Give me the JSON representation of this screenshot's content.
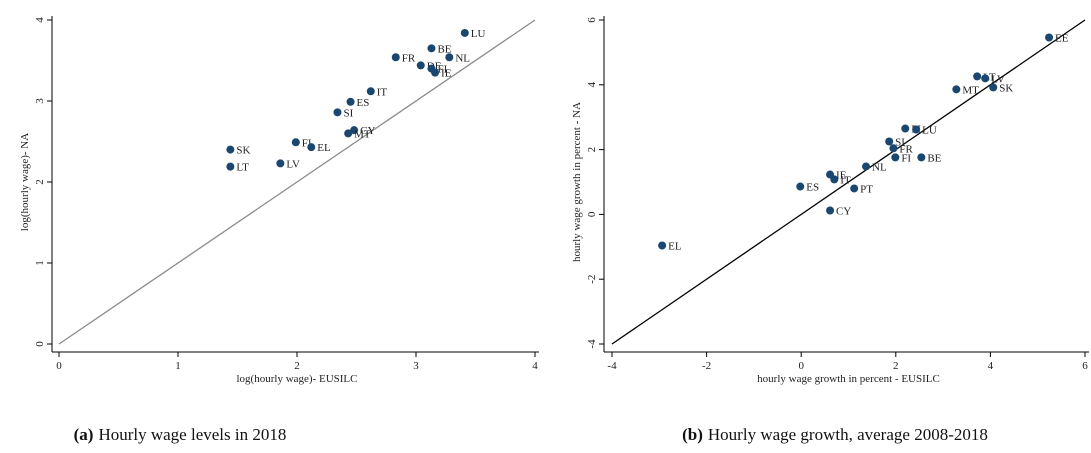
{
  "chart_data": [
    {
      "type": "scatter",
      "caption_label": "(a)",
      "caption": "Hourly wage levels in 2018",
      "xlabel": "log(hourly wage)- EUSILC",
      "ylabel": "log(hourly wage)- NA",
      "xlim": [
        0,
        4
      ],
      "ylim": [
        0,
        4
      ],
      "xticks": [
        0,
        1,
        2,
        3,
        4
      ],
      "yticks": [
        0,
        1,
        2,
        3,
        4
      ],
      "color": "#1a476f",
      "diagonal": {
        "from": [
          0,
          0
        ],
        "to": [
          4,
          4
        ],
        "color": "#8c8c8c"
      },
      "series": [
        {
          "name": "countries",
          "labels": [
            "SK",
            "LT",
            "LV",
            "FI",
            "EL",
            "SI",
            "ES",
            "IT",
            "CY",
            "MT",
            "FR",
            "DE",
            "FI",
            "IE",
            "BE",
            "NL",
            "LU"
          ],
          "x": [
            1.44,
            1.44,
            1.86,
            1.99,
            2.12,
            2.34,
            2.45,
            2.62,
            2.48,
            2.43,
            2.83,
            3.04,
            3.13,
            3.16,
            3.13,
            3.28,
            3.41
          ],
          "values": [
            2.4,
            2.19,
            2.23,
            2.49,
            2.43,
            2.86,
            2.99,
            3.12,
            2.64,
            2.6,
            3.54,
            3.44,
            3.4,
            3.35,
            3.65,
            3.54,
            3.84
          ]
        }
      ]
    },
    {
      "type": "scatter",
      "caption_label": "(b)",
      "caption": "Hourly wage growth, average 2008-2018",
      "xlabel": "hourly wage growth in percent - EUSILC",
      "ylabel": "hourly wage growth in percent - NA",
      "xlim": [
        -4,
        6
      ],
      "ylim": [
        -4,
        6
      ],
      "xticks": [
        -4,
        -2,
        0,
        2,
        4,
        6
      ],
      "yticks": [
        -4,
        -2,
        0,
        2,
        4,
        6
      ],
      "color": "#1a476f",
      "diagonal": {
        "from": [
          -4,
          -4
        ],
        "to": [
          6,
          6
        ],
        "color": "#000000"
      },
      "series": [
        {
          "name": "countries",
          "labels": [
            "EE",
            "LT",
            "LV",
            "MT",
            "SK",
            "PL",
            "LU",
            "SI",
            "FR",
            "FI",
            "BE",
            "NL",
            "IE",
            "IT",
            "ES",
            "PT",
            "CY",
            "EL"
          ],
          "x": [
            5.24,
            3.72,
            3.89,
            3.28,
            4.06,
            2.2,
            2.43,
            1.86,
            1.95,
            1.99,
            2.54,
            1.37,
            0.61,
            0.7,
            -0.02,
            1.12,
            0.61,
            -2.94
          ],
          "values": [
            5.46,
            4.26,
            4.2,
            3.86,
            3.92,
            2.65,
            2.62,
            2.25,
            2.04,
            1.76,
            1.76,
            1.48,
            1.23,
            1.08,
            0.86,
            0.8,
            0.12,
            -0.96
          ]
        }
      ]
    }
  ]
}
